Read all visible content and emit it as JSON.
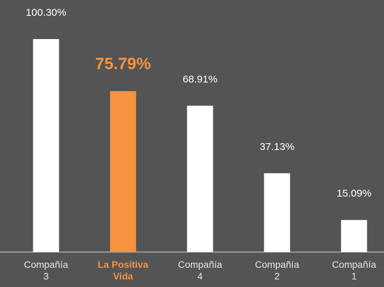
{
  "chart_data": {
    "type": "bar",
    "categories": [
      "Compañía\n3",
      "La Positiva\nVida",
      "Compañía\n4",
      "Compañía\n2",
      "Compañía\n1"
    ],
    "values": [
      100.3,
      75.79,
      68.91,
      37.13,
      15.09
    ],
    "value_labels": [
      "100.30%",
      "75.79%",
      "68.91%",
      "37.13%",
      "15.09%"
    ],
    "colors": [
      "#ffffff",
      "#f7923e",
      "#ffffff",
      "#ffffff",
      "#ffffff"
    ]
  }
}
